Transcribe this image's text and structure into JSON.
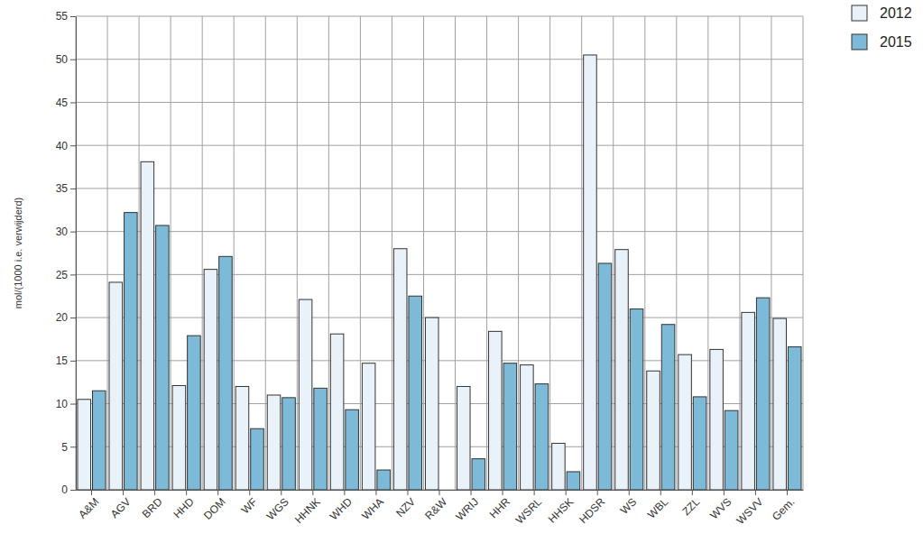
{
  "chart_data": {
    "type": "bar",
    "y_label": "mol/(1000 i.e. verwijderd)",
    "categories": [
      "A&M",
      "AGV",
      "BRD",
      "HHD",
      "DOM",
      "WF",
      "WGS",
      "HHNK",
      "WHD",
      "WHA",
      "NZV",
      "R&W",
      "WRIJ",
      "HHR",
      "WSRL",
      "HHSK",
      "HDSR",
      "WS",
      "WBL",
      "ZZL",
      "WVS",
      "WSVV",
      "Gem."
    ],
    "series": [
      {
        "name": "2012",
        "color": "#e9f1f9",
        "values": [
          10.5,
          24.1,
          38.1,
          12.1,
          25.6,
          12.0,
          11.0,
          22.1,
          18.1,
          14.7,
          28.0,
          20.0,
          12.0,
          18.4,
          14.5,
          5.4,
          50.5,
          27.9,
          13.8,
          15.7,
          16.3,
          20.6,
          19.9
        ]
      },
      {
        "name": "2015",
        "color": "#7cbad8",
        "values": [
          11.5,
          32.2,
          30.7,
          17.9,
          27.1,
          7.1,
          10.7,
          11.8,
          9.3,
          2.3,
          22.5,
          null,
          3.6,
          14.7,
          12.3,
          2.1,
          26.3,
          21.0,
          19.2,
          10.8,
          9.2,
          22.3,
          16.6
        ]
      }
    ],
    "ylim": [
      0,
      55
    ],
    "yticks": [
      0,
      5,
      10,
      15,
      20,
      25,
      30,
      35,
      40,
      45,
      50,
      55
    ],
    "grid": true,
    "legend": "upper right"
  }
}
